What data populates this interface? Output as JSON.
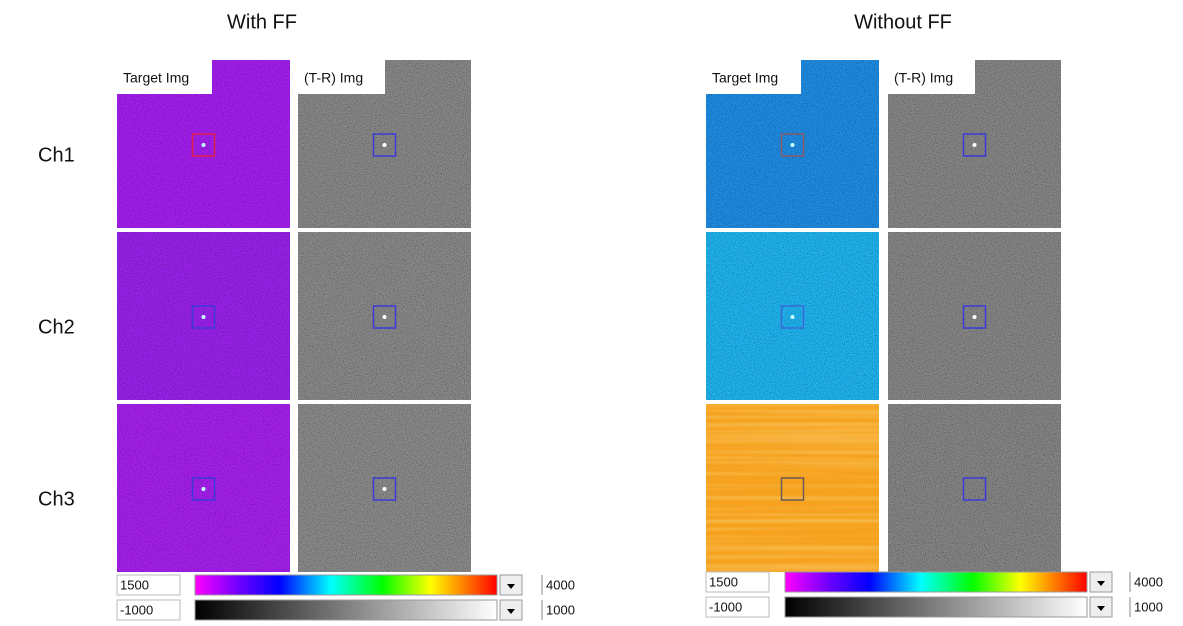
{
  "row_labels": [
    "Ch1",
    "Ch2",
    "Ch3"
  ],
  "panels": [
    {
      "title": "With FF",
      "column_labels": [
        "Target Img",
        "(T-R) Img"
      ],
      "colorbars": [
        {
          "min": 1500,
          "max": 4000
        },
        {
          "min": -1000,
          "max": 1000
        }
      ]
    },
    {
      "title": "Without FF",
      "column_labels": [
        "Target Img",
        "(T-R) Img"
      ],
      "colorbars": [
        {
          "min": 1500,
          "max": 4000
        },
        {
          "min": -1000,
          "max": 1000
        }
      ]
    }
  ]
}
